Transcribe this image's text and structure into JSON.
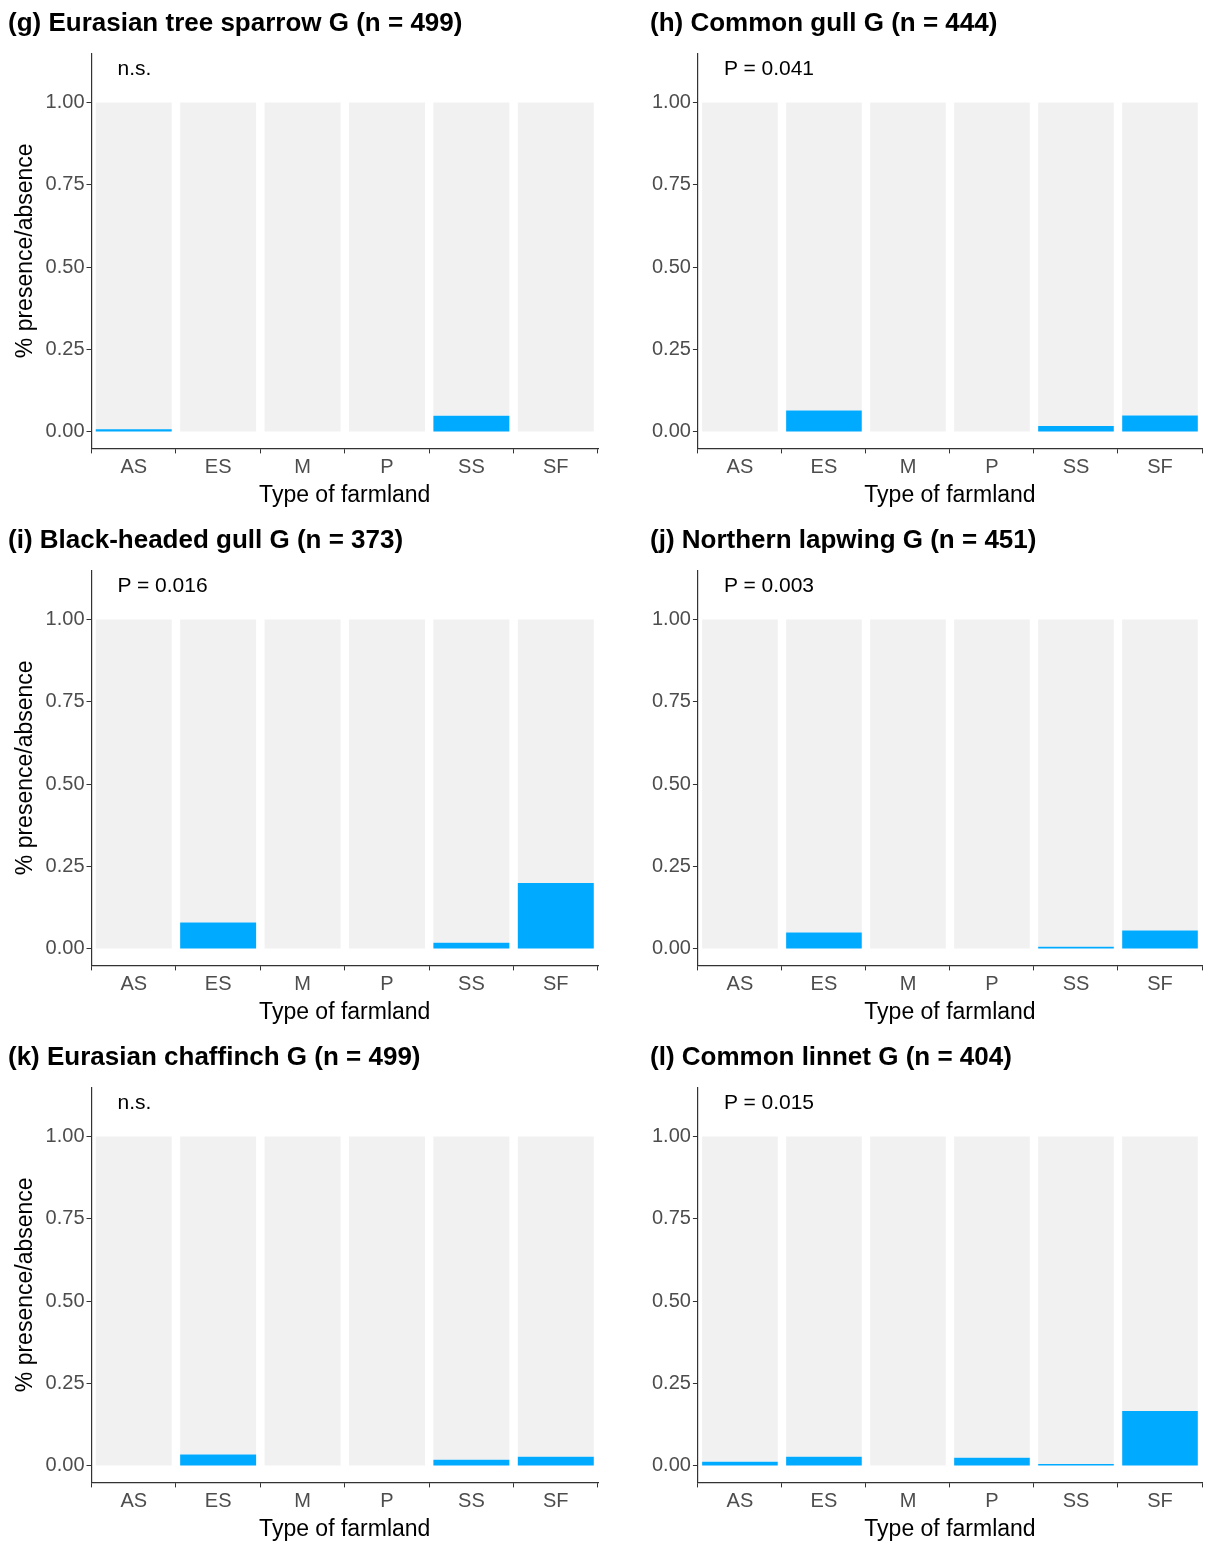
{
  "chart_data": [
    {
      "type": "bar",
      "title": "(g) Eurasian tree sparrow G (n = 499)",
      "annotations": [
        "n.s."
      ],
      "xlabel": "Type of farmland",
      "ylabel": "% presence/absence",
      "categories": [
        "AS",
        "ES",
        "M",
        "P",
        "SS",
        "SF"
      ],
      "stacked": true,
      "ylim": [
        -0.05,
        1.15
      ],
      "yticks": [
        {
          "value": 0,
          "label": "0.00"
        },
        {
          "value": 0.25,
          "label": "0.25"
        },
        {
          "value": 0.5,
          "label": "0.50"
        },
        {
          "value": 0.75,
          "label": "0.75"
        },
        {
          "value": 1,
          "label": "1.00"
        }
      ],
      "grid": false,
      "legend": false,
      "series": [
        {
          "color": "#00aaff",
          "values": [
            0.008,
            0,
            0,
            0,
            0.049,
            0
          ]
        },
        {
          "color": "#f1f1f1",
          "values": [
            0.992,
            1,
            1,
            1,
            0.951,
            1
          ]
        }
      ]
    },
    {
      "type": "bar",
      "title": "(h) Common gull G (n = 444)",
      "annotations": [
        "P = 0.041"
      ],
      "xlabel": "Type of farmland",
      "categories": [
        "AS",
        "ES",
        "M",
        "P",
        "SS",
        "SF"
      ],
      "stacked": true,
      "ylim": [
        -0.05,
        1.15
      ],
      "yticks": [
        {
          "value": 0,
          "label": "0.00"
        },
        {
          "value": 0.25,
          "label": "0.25"
        },
        {
          "value": 0.5,
          "label": "0.50"
        },
        {
          "value": 0.75,
          "label": "0.75"
        },
        {
          "value": 1,
          "label": "1.00"
        }
      ],
      "grid": false,
      "legend": false,
      "series": [
        {
          "color": "#00aaff",
          "values": [
            0,
            0.065,
            0,
            0,
            0.018,
            0.05
          ]
        },
        {
          "color": "#f1f1f1",
          "values": [
            1,
            0.935,
            1,
            1,
            0.982,
            0.95
          ]
        }
      ]
    },
    {
      "type": "bar",
      "title": "(i) Black-headed gull G (n = 373)",
      "annotations": [
        "P = 0.016"
      ],
      "xlabel": "Type of farmland",
      "ylabel": "% presence/absence",
      "categories": [
        "AS",
        "ES",
        "M",
        "P",
        "SS",
        "SF"
      ],
      "stacked": true,
      "ylim": [
        -0.05,
        1.15
      ],
      "yticks": [
        {
          "value": 0,
          "label": "0.00"
        },
        {
          "value": 0.25,
          "label": "0.25"
        },
        {
          "value": 0.5,
          "label": "0.50"
        },
        {
          "value": 0.75,
          "label": "0.75"
        },
        {
          "value": 1,
          "label": "1.00"
        }
      ],
      "grid": false,
      "legend": false,
      "series": [
        {
          "color": "#00aaff",
          "values": [
            0,
            0.08,
            0,
            0,
            0.019,
            0.2
          ]
        },
        {
          "color": "#f1f1f1",
          "values": [
            1,
            0.92,
            1,
            1,
            0.981,
            0.8
          ]
        }
      ]
    },
    {
      "type": "bar",
      "title": "(j) Northern lapwing G (n = 451)",
      "annotations": [
        "P = 0.003"
      ],
      "xlabel": "Type of farmland",
      "categories": [
        "AS",
        "ES",
        "M",
        "P",
        "SS",
        "SF"
      ],
      "stacked": true,
      "ylim": [
        -0.05,
        1.15
      ],
      "yticks": [
        {
          "value": 0,
          "label": "0.00"
        },
        {
          "value": 0.25,
          "label": "0.25"
        },
        {
          "value": 0.5,
          "label": "0.50"
        },
        {
          "value": 0.75,
          "label": "0.75"
        },
        {
          "value": 1,
          "label": "1.00"
        }
      ],
      "grid": false,
      "legend": false,
      "series": [
        {
          "color": "#00aaff",
          "values": [
            0,
            0.05,
            0,
            0,
            0.007,
            0.056
          ]
        },
        {
          "color": "#f1f1f1",
          "values": [
            1,
            0.95,
            1,
            1,
            0.993,
            0.944
          ]
        }
      ]
    },
    {
      "type": "bar",
      "title": "(k) Eurasian chaffinch G (n = 499)",
      "annotations": [
        "n.s."
      ],
      "xlabel": "Type of farmland",
      "ylabel": "% presence/absence",
      "categories": [
        "AS",
        "ES",
        "M",
        "P",
        "SS",
        "SF"
      ],
      "stacked": true,
      "ylim": [
        -0.05,
        1.15
      ],
      "yticks": [
        {
          "value": 0,
          "label": "0.00"
        },
        {
          "value": 0.25,
          "label": "0.25"
        },
        {
          "value": 0.5,
          "label": "0.50"
        },
        {
          "value": 0.75,
          "label": "0.75"
        },
        {
          "value": 1,
          "label": "1.00"
        }
      ],
      "grid": false,
      "legend": false,
      "series": [
        {
          "color": "#00aaff",
          "values": [
            0,
            0.035,
            0,
            0,
            0.019,
            0.028
          ]
        },
        {
          "color": "#f1f1f1",
          "values": [
            1,
            0.965,
            1,
            1,
            0.981,
            0.972
          ]
        }
      ]
    },
    {
      "type": "bar",
      "title": "(l) Common linnet G (n = 404)",
      "annotations": [
        "P = 0.015"
      ],
      "xlabel": "Type of farmland",
      "categories": [
        "AS",
        "ES",
        "M",
        "P",
        "SS",
        "SF"
      ],
      "stacked": true,
      "ylim": [
        -0.05,
        1.15
      ],
      "yticks": [
        {
          "value": 0,
          "label": "0.00"
        },
        {
          "value": 0.25,
          "label": "0.25"
        },
        {
          "value": 0.5,
          "label": "0.50"
        },
        {
          "value": 0.75,
          "label": "0.75"
        },
        {
          "value": 1,
          "label": "1.00"
        }
      ],
      "grid": false,
      "legend": false,
      "series": [
        {
          "color": "#00aaff",
          "values": [
            0.013,
            0.028,
            0,
            0.025,
            0.006,
            0.167
          ]
        },
        {
          "color": "#f1f1f1",
          "values": [
            0.987,
            0.972,
            1,
            0.975,
            0.994,
            0.833
          ]
        }
      ]
    }
  ]
}
